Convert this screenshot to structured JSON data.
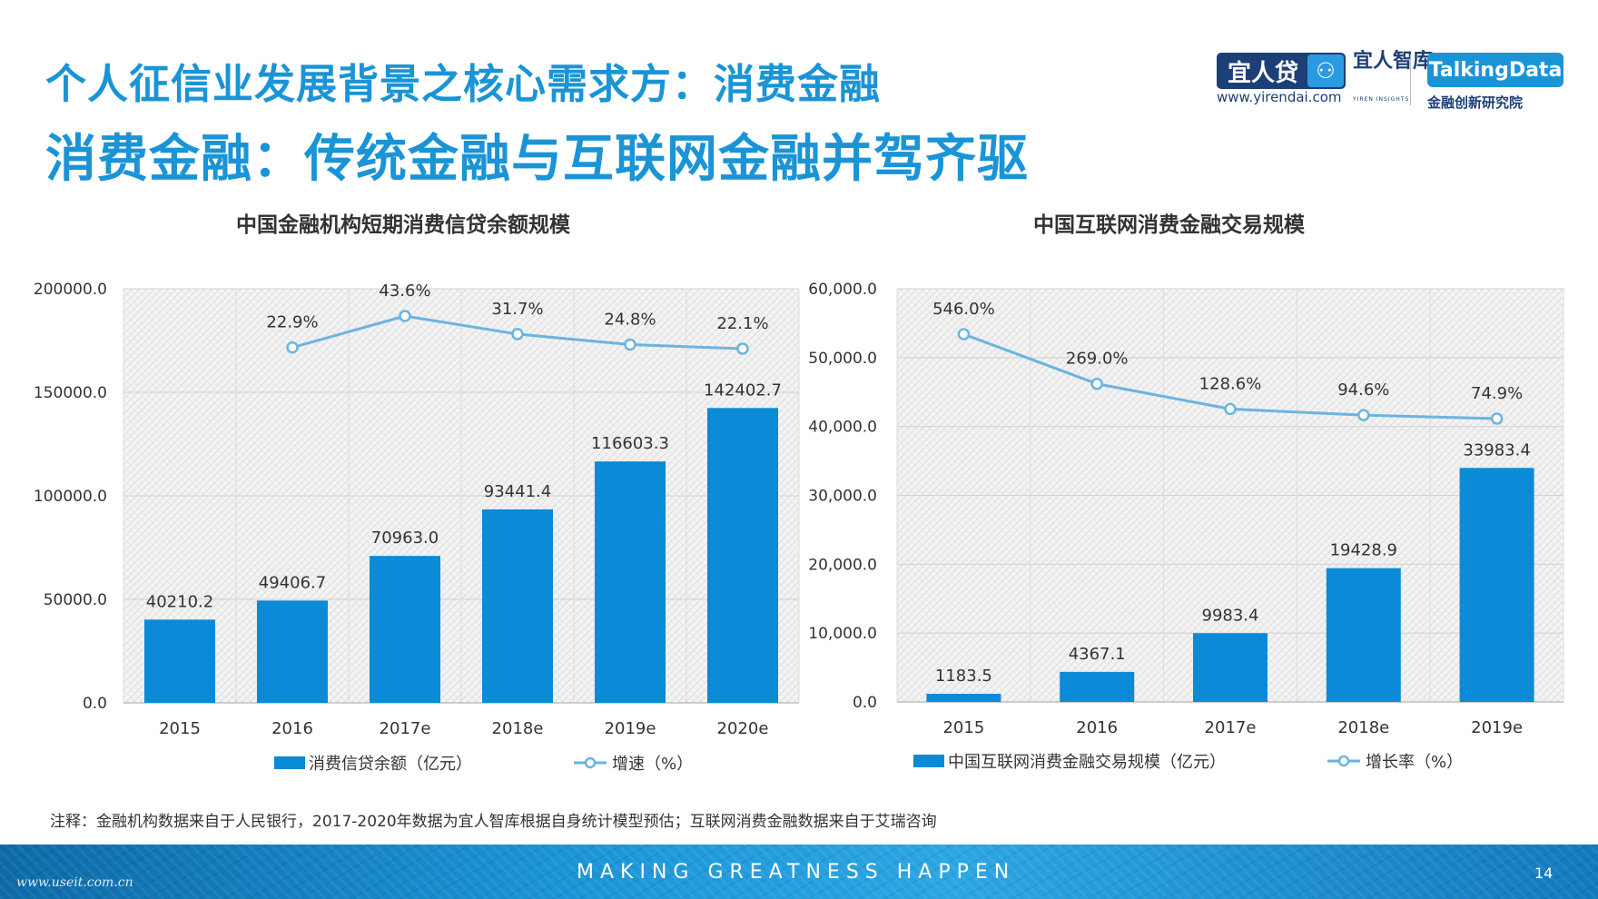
{
  "header": {
    "title_line1": "个人征信业发展背景之核心需求方：消费金融",
    "title_line2": "消费金融：传统金融与互联网金融并驾齐驱"
  },
  "logos": {
    "yirendai": "宜人贷",
    "yirendai_url": "www.yirendai.com",
    "yiren_insights": "宜人智库",
    "yiren_insights_sub": "YIREN INSIGHTS",
    "talkingdata": "TalkingData",
    "talkingdata_sub": "金融创新研究院"
  },
  "chart_data": [
    {
      "type": "bar",
      "title": "中国金融机构短期消费信贷余额规模",
      "categories": [
        "2015",
        "2016",
        "2017e",
        "2018e",
        "2019e",
        "2020e"
      ],
      "bar_series": {
        "name": "消费信贷余额（亿元）",
        "values": [
          40210.2,
          49406.7,
          70963.0,
          93441.4,
          116603.3,
          142402.7
        ],
        "labels": [
          "40210.2",
          "49406.7",
          "70963.0",
          "93441.4",
          "116603.3",
          "142402.7"
        ],
        "color": "#0b8ad8"
      },
      "line_series": {
        "name": "增速（%）",
        "values": [
          null,
          22.9,
          43.6,
          31.7,
          24.8,
          22.1
        ],
        "labels": [
          "",
          "22.9%",
          "43.6%",
          "31.7%",
          "24.8%",
          "22.1%"
        ],
        "color": "#6ab4e0"
      },
      "ylim": [
        0,
        200000
      ],
      "yticks": [
        "0.0",
        "50000.0",
        "100000.0",
        "150000.0",
        "200000.0"
      ],
      "legend_position": "bottom"
    },
    {
      "type": "bar",
      "title": "中国互联网消费金融交易规模",
      "categories": [
        "2015",
        "2016",
        "2017e",
        "2018e",
        "2019e"
      ],
      "bar_series": {
        "name": "中国互联网消费金融交易规模（亿元）",
        "values": [
          1183.5,
          4367.1,
          9983.4,
          19428.9,
          33983.4
        ],
        "labels": [
          "1183.5",
          "4367.1",
          "9983.4",
          "19428.9",
          "33983.4"
        ],
        "color": "#0b8ad8"
      },
      "line_series": {
        "name": "增长率（%）",
        "values": [
          546.0,
          269.0,
          128.6,
          94.6,
          74.9
        ],
        "labels": [
          "546.0%",
          "269.0%",
          "128.6%",
          "94.6%",
          "74.9%"
        ],
        "color": "#6ab4e0"
      },
      "ylim": [
        0,
        60000
      ],
      "yticks": [
        "0.0",
        "10,000.0",
        "20,000.0",
        "30,000.0",
        "40,000.0",
        "50,000.0",
        "60,000.0"
      ],
      "legend_position": "bottom"
    }
  ],
  "note": "注释：金融机构数据来自于人民银行，2017-2020年数据为宜人智库根据自身统计模型预估；互联网消费金融数据来自于艾瑞咨询",
  "footer": {
    "slogan": "MAKING GREATNESS HAPPEN",
    "page_number": "14",
    "watermark": "www.useit.com.cn"
  }
}
